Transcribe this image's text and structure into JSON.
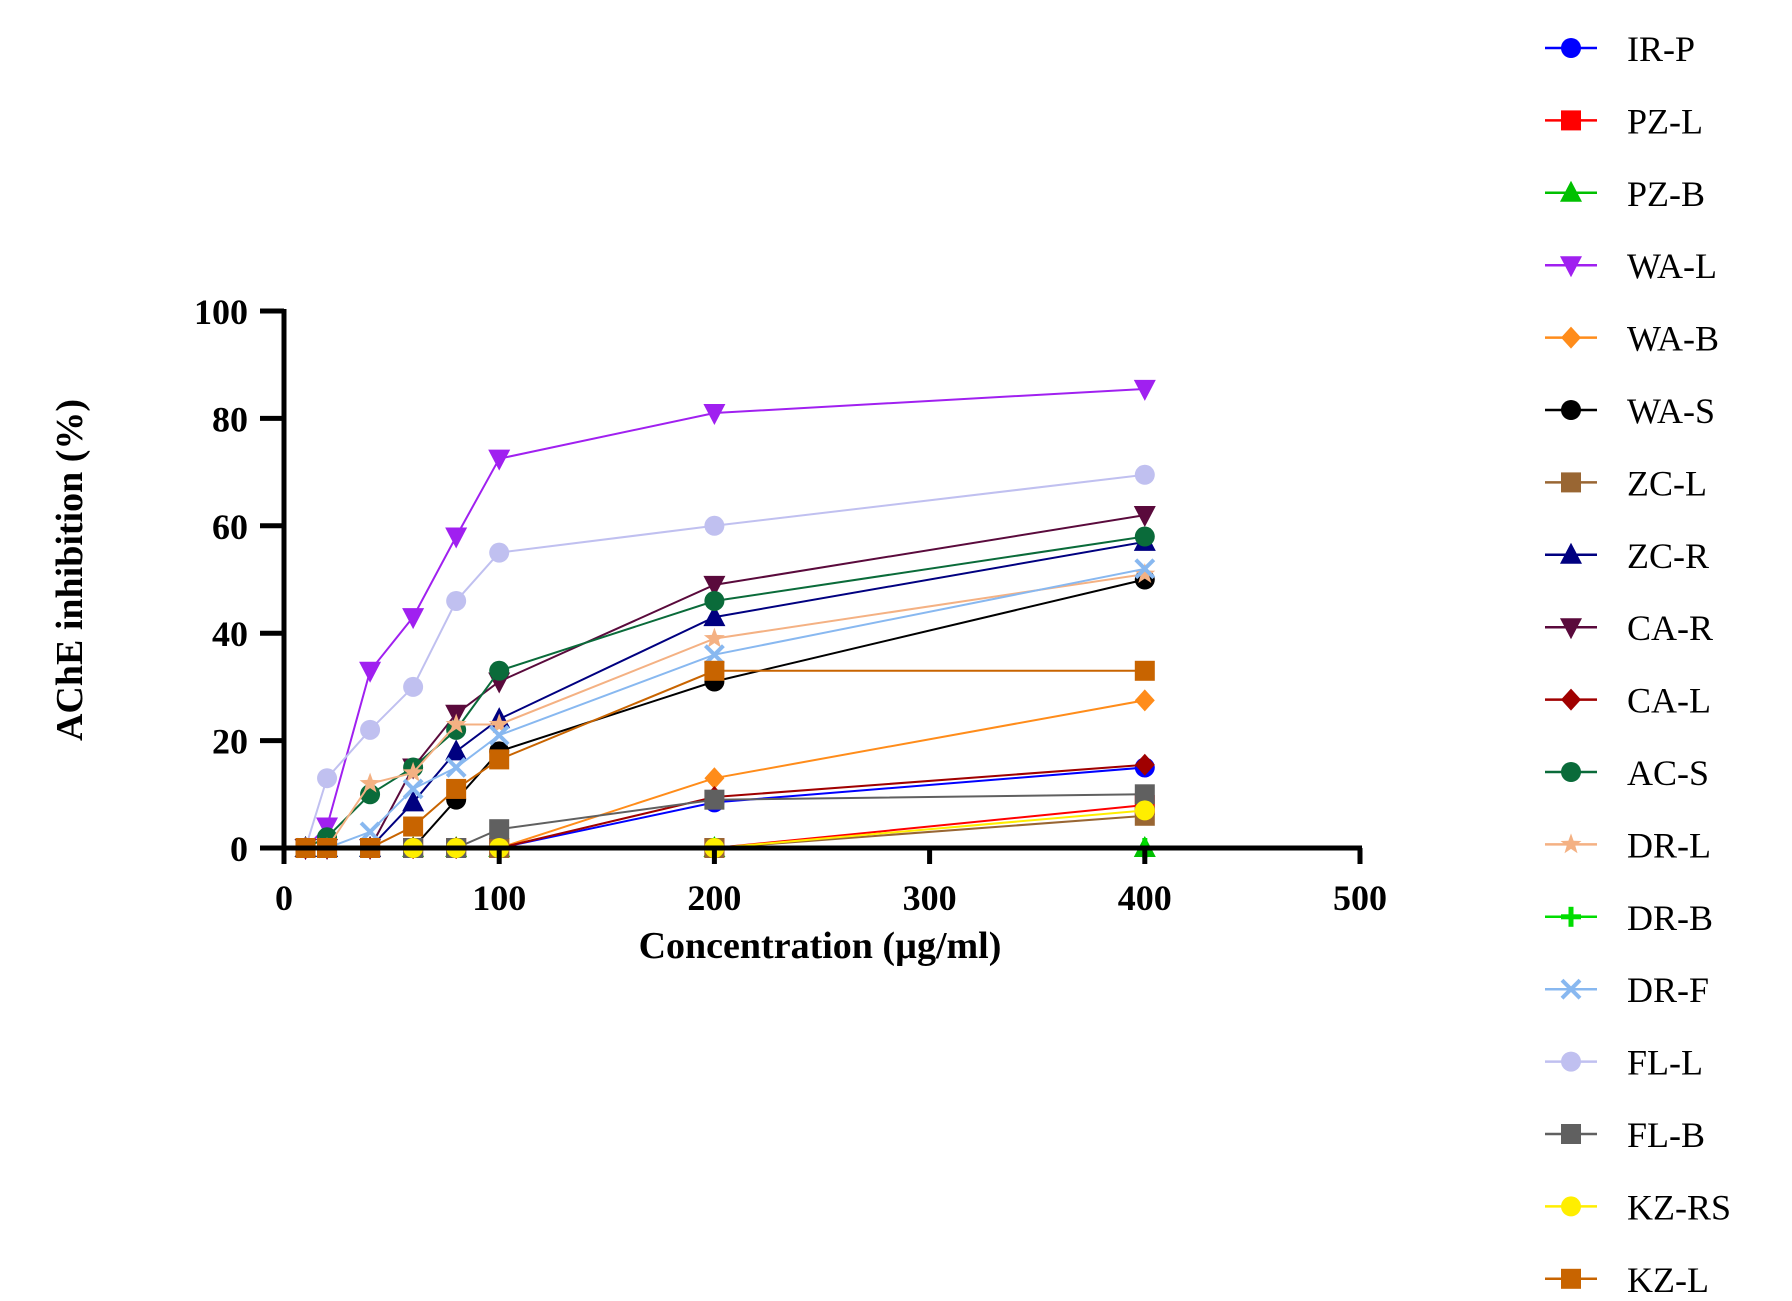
{
  "chart_data": {
    "type": "line",
    "title": "",
    "xlabel": "Concentration (µg/ml)",
    "ylabel": "AChE inhibition (%)",
    "xlim": [
      0,
      500
    ],
    "ylim": [
      0,
      100
    ],
    "xticks": [
      "0",
      "100",
      "200",
      "300",
      "400",
      "500"
    ],
    "yticks": [
      "0",
      "20",
      "40",
      "60",
      "80",
      "100"
    ],
    "grid": false,
    "legend": "right",
    "x": [
      10,
      20,
      40,
      60,
      80,
      100,
      200,
      400
    ],
    "series": [
      {
        "name": "IR-P",
        "color": "#0000ff",
        "marker": "circle",
        "values": [
          0,
          0,
          0,
          0,
          0,
          0,
          8.5,
          15
        ]
      },
      {
        "name": "PZ-L",
        "color": "#ff0000",
        "marker": "square",
        "values": [
          0,
          0,
          0,
          0,
          0,
          0,
          0,
          8
        ]
      },
      {
        "name": "PZ-B",
        "color": "#00c000",
        "marker": "triangle",
        "values": [
          0,
          0,
          0,
          0,
          0,
          0,
          0,
          0
        ]
      },
      {
        "name": "WA-L",
        "color": "#a020f0",
        "marker": "tri-down",
        "values": [
          0,
          4,
          33,
          43,
          58,
          72.5,
          81,
          85.5
        ]
      },
      {
        "name": "WA-B",
        "color": "#ff8c1a",
        "marker": "diamond",
        "values": [
          0,
          0,
          0,
          0,
          0,
          0,
          13,
          27.5
        ]
      },
      {
        "name": "WA-S",
        "color": "#000000",
        "marker": "circle",
        "values": [
          0,
          0,
          0,
          0,
          9,
          18,
          31,
          50
        ]
      },
      {
        "name": "ZC-L",
        "color": "#996633",
        "marker": "square",
        "values": [
          0,
          0,
          0,
          0,
          0,
          0,
          0,
          6
        ]
      },
      {
        "name": "ZC-R",
        "color": "#000080",
        "marker": "triangle",
        "values": [
          0,
          0,
          0,
          8.5,
          18,
          24,
          43,
          57
        ]
      },
      {
        "name": "CA-R",
        "color": "#5a0a3c",
        "marker": "tri-down",
        "values": [
          0,
          0,
          0,
          15,
          25,
          31,
          49,
          62
        ]
      },
      {
        "name": "CA-L",
        "color": "#a00000",
        "marker": "diamond",
        "values": [
          0,
          0,
          0,
          0,
          0,
          0,
          9.5,
          15.5
        ]
      },
      {
        "name": "AC-S",
        "color": "#0a6b3a",
        "marker": "circle",
        "values": [
          0,
          2,
          10,
          15,
          22,
          33,
          46,
          58
        ]
      },
      {
        "name": "DR-L",
        "color": "#f4b183",
        "marker": "star",
        "values": [
          0,
          0,
          12,
          14,
          23,
          23,
          39,
          51
        ]
      },
      {
        "name": "DR-B",
        "color": "#00dd00",
        "marker": "plus",
        "values": [
          0,
          0,
          0,
          0,
          0,
          0,
          0,
          0
        ]
      },
      {
        "name": "DR-F",
        "color": "#88b8f0",
        "marker": "cross",
        "values": [
          0,
          0,
          3,
          11,
          15,
          21,
          36,
          52
        ]
      },
      {
        "name": "FL-L",
        "color": "#c0c0f0",
        "marker": "circle",
        "values": [
          0,
          13,
          22,
          30,
          46,
          55,
          60,
          69.5
        ]
      },
      {
        "name": "FL-B",
        "color": "#606060",
        "marker": "square",
        "values": [
          0,
          0,
          0,
          0,
          0,
          3.5,
          9,
          10
        ]
      },
      {
        "name": "KZ-RS",
        "color": "#ffee00",
        "marker": "circle",
        "values": [
          0,
          0,
          0,
          0,
          0,
          0,
          0,
          7
        ]
      },
      {
        "name": "KZ-L",
        "color": "#c86400",
        "marker": "square",
        "values": [
          0,
          0,
          0,
          4,
          11,
          16.5,
          33,
          33
        ]
      }
    ]
  }
}
